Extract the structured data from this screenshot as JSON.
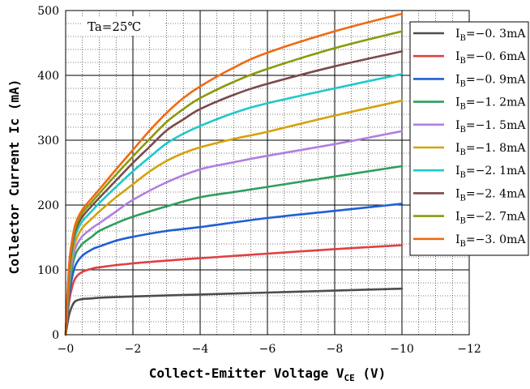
{
  "chart_data": {
    "type": "line",
    "title": "",
    "annotation": "Ta=25℃",
    "xlabel": {
      "main": "Collect-Emitter Voltage V",
      "sub": "CE",
      "unit": " (V)"
    },
    "ylabel": "Collector  Current Ic (mA)",
    "xlim": [
      0,
      -12
    ],
    "ylim": [
      0,
      500
    ],
    "x_ticks": [
      0,
      -2,
      -4,
      -6,
      -8,
      -10,
      -12
    ],
    "x_tick_labels": [
      "−0",
      "−2",
      "−4",
      "−6",
      "−8",
      "−10",
      "−12"
    ],
    "y_ticks": [
      0,
      100,
      200,
      300,
      400,
      500
    ],
    "y_tick_labels": [
      "0",
      "100",
      "200",
      "300",
      "400",
      "500"
    ],
    "grid": true,
    "legend_position": "top-right",
    "series": [
      {
        "label_prefix": "I",
        "label_sub": "B",
        "label_suffix": "=−0. 3mA",
        "color": "#4d4d4d",
        "x": [
          0,
          -0.1,
          -0.2,
          -0.3,
          -0.5,
          -0.8,
          -1,
          -2,
          -4,
          -6,
          -8,
          -10
        ],
        "y": [
          0,
          30,
          45,
          52,
          55,
          56,
          57,
          59,
          62,
          65,
          68,
          71
        ]
      },
      {
        "label_prefix": "I",
        "label_sub": "B",
        "label_suffix": "=−0. 6mA",
        "color": "#e04040",
        "x": [
          0,
          -0.1,
          -0.2,
          -0.3,
          -0.5,
          -0.8,
          -1,
          -2,
          -4,
          -6,
          -8,
          -10
        ],
        "y": [
          0,
          50,
          75,
          88,
          97,
          102,
          104,
          110,
          118,
          125,
          132,
          138
        ]
      },
      {
        "label_prefix": "I",
        "label_sub": "B",
        "label_suffix": "=−0. 9mA",
        "color": "#1f5fd6",
        "x": [
          0,
          -0.1,
          -0.2,
          -0.3,
          -0.5,
          -0.8,
          -1,
          -1.5,
          -2,
          -3,
          -4,
          -6,
          -8,
          -10
        ],
        "y": [
          0,
          60,
          90,
          108,
          122,
          132,
          136,
          145,
          151,
          160,
          166,
          180,
          191,
          202
        ]
      },
      {
        "label_prefix": "I",
        "label_sub": "B",
        "label_suffix": "=−1. 2mA",
        "color": "#2e9e5e",
        "x": [
          0,
          -0.1,
          -0.2,
          -0.3,
          -0.5,
          -0.8,
          -1,
          -1.5,
          -2,
          -3,
          -4,
          -5,
          -6,
          -8,
          -10
        ],
        "y": [
          0,
          70,
          105,
          125,
          140,
          152,
          160,
          172,
          182,
          198,
          212,
          220,
          228,
          244,
          260
        ]
      },
      {
        "label_prefix": "I",
        "label_sub": "B",
        "label_suffix": "=−1. 5mA",
        "color": "#b27ee0",
        "x": [
          0,
          -0.1,
          -0.2,
          -0.3,
          -0.5,
          -0.8,
          -1,
          -1.5,
          -2,
          -3,
          -4,
          -5,
          -6,
          -8,
          -10
        ],
        "y": [
          0,
          80,
          115,
          135,
          152,
          165,
          172,
          190,
          208,
          235,
          255,
          266,
          276,
          294,
          314
        ]
      },
      {
        "label_prefix": "I",
        "label_sub": "B",
        "label_suffix": "=−1. 8mA",
        "color": "#d4a20a",
        "x": [
          0,
          -0.1,
          -0.2,
          -0.3,
          -0.5,
          -0.8,
          -1,
          -1.5,
          -2,
          -2.5,
          -3,
          -3.5,
          -4,
          -5,
          -6,
          -8,
          -10
        ],
        "y": [
          0,
          85,
          125,
          145,
          165,
          180,
          190,
          212,
          232,
          252,
          268,
          280,
          289,
          302,
          313,
          338,
          361
        ]
      },
      {
        "label_prefix": "I",
        "label_sub": "B",
        "label_suffix": "=−2. 1mA",
        "color": "#1ec9c9",
        "x": [
          0,
          -0.1,
          -0.2,
          -0.3,
          -0.5,
          -0.8,
          -1,
          -1.5,
          -2,
          -2.5,
          -3,
          -3.5,
          -4,
          -5,
          -6,
          -8,
          -10
        ],
        "y": [
          0,
          90,
          132,
          155,
          175,
          192,
          203,
          228,
          252,
          274,
          295,
          310,
          322,
          342,
          357,
          380,
          402
        ]
      },
      {
        "label_prefix": "I",
        "label_sub": "B",
        "label_suffix": "=−2. 4mA",
        "color": "#7a4a4a",
        "x": [
          0,
          -0.1,
          -0.2,
          -0.3,
          -0.5,
          -0.8,
          -1,
          -1.5,
          -2,
          -2.5,
          -3,
          -3.5,
          -4,
          -5,
          -6,
          -8,
          -10
        ],
        "y": [
          0,
          95,
          138,
          162,
          182,
          200,
          211,
          238,
          265,
          290,
          315,
          332,
          348,
          370,
          387,
          414,
          437
        ]
      },
      {
        "label_prefix": "I",
        "label_sub": "B",
        "label_suffix": "=−2. 7mA",
        "color": "#8a9a0a",
        "x": [
          0,
          -0.1,
          -0.2,
          -0.3,
          -0.5,
          -0.8,
          -1,
          -1.5,
          -2,
          -2.5,
          -3,
          -3.5,
          -4,
          -5,
          -6,
          -8,
          -10
        ],
        "y": [
          0,
          100,
          143,
          167,
          188,
          206,
          218,
          247,
          275,
          302,
          328,
          348,
          365,
          390,
          410,
          442,
          468
        ]
      },
      {
        "label_prefix": "I",
        "label_sub": "B",
        "label_suffix": "=−3. 0mA",
        "color": "#f06a10",
        "x": [
          0,
          -0.1,
          -0.2,
          -0.3,
          -0.5,
          -0.8,
          -1,
          -1.5,
          -2,
          -2.5,
          -3,
          -3.5,
          -4,
          -5,
          -6,
          -8,
          -10
        ],
        "y": [
          0,
          105,
          148,
          172,
          193,
          212,
          224,
          255,
          285,
          315,
          342,
          365,
          383,
          412,
          435,
          468,
          495
        ]
      }
    ]
  }
}
